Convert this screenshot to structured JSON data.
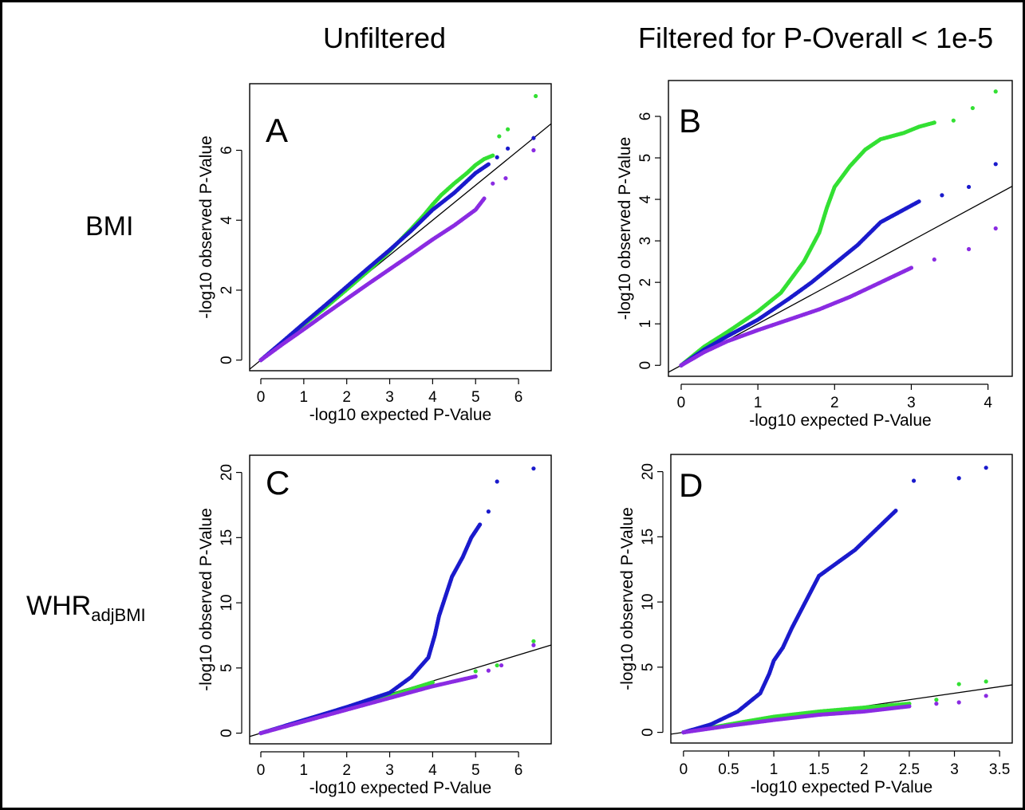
{
  "column_headers": [
    "Unfiltered",
    "Filtered for P-Overall < 1e-5"
  ],
  "row_labels": [
    {
      "text": "BMI",
      "sub": ""
    },
    {
      "text": "WHR",
      "sub": "adjBMI"
    }
  ],
  "colors": {
    "green": "#33e033",
    "blue": "#1a1acc",
    "purple": "#8a2be2",
    "line": "#000000"
  },
  "chart_data": [
    {
      "type": "scatter",
      "panel": "A",
      "xlabel": "-log10 expected P-Value",
      "ylabel": "-log10 observed P-Value",
      "xlim": [
        0,
        6.5
      ],
      "ylim": [
        0,
        7.6
      ],
      "xticks": [
        0,
        1,
        2,
        3,
        4,
        5,
        6
      ],
      "yticks": [
        0,
        2,
        4,
        6
      ],
      "reference_line": "y = x",
      "series": [
        {
          "color": "green",
          "points": [
            [
              0,
              0
            ],
            [
              0.5,
              0.5
            ],
            [
              1,
              1.02
            ],
            [
              1.5,
              1.5
            ],
            [
              2,
              2.02
            ],
            [
              2.5,
              2.55
            ],
            [
              3,
              3.12
            ],
            [
              3.5,
              3.75
            ],
            [
              3.8,
              4.15
            ],
            [
              4,
              4.45
            ],
            [
              4.2,
              4.72
            ],
            [
              4.5,
              5.05
            ],
            [
              4.8,
              5.35
            ],
            [
              5,
              5.58
            ],
            [
              5.2,
              5.75
            ],
            [
              5.4,
              5.85
            ],
            [
              5.55,
              6.4
            ],
            [
              5.75,
              6.6
            ],
            [
              6.4,
              7.55
            ]
          ]
        },
        {
          "color": "blue",
          "points": [
            [
              0,
              0
            ],
            [
              0.5,
              0.52
            ],
            [
              1,
              1.05
            ],
            [
              1.5,
              1.57
            ],
            [
              2,
              2.1
            ],
            [
              2.5,
              2.63
            ],
            [
              3,
              3.15
            ],
            [
              3.5,
              3.7
            ],
            [
              4,
              4.3
            ],
            [
              4.5,
              4.78
            ],
            [
              5,
              5.35
            ],
            [
              5.3,
              5.6
            ],
            [
              5.5,
              5.8
            ],
            [
              5.75,
              6.05
            ],
            [
              6.35,
              6.35
            ]
          ]
        },
        {
          "color": "purple",
          "points": [
            [
              0,
              0
            ],
            [
              0.5,
              0.45
            ],
            [
              1,
              0.88
            ],
            [
              1.5,
              1.32
            ],
            [
              2,
              1.75
            ],
            [
              2.5,
              2.18
            ],
            [
              3,
              2.6
            ],
            [
              3.5,
              3.02
            ],
            [
              4,
              3.45
            ],
            [
              4.5,
              3.85
            ],
            [
              5,
              4.3
            ],
            [
              5.2,
              4.62
            ],
            [
              5.4,
              5.05
            ],
            [
              5.7,
              5.2
            ],
            [
              6.35,
              6.0
            ]
          ]
        }
      ]
    },
    {
      "type": "scatter",
      "panel": "B",
      "xlabel": "-log10 expected P-Value",
      "ylabel": "-log10 observed P-Value",
      "xlim": [
        0,
        4.15
      ],
      "ylim": [
        0,
        6.6
      ],
      "xticks": [
        0,
        1,
        2,
        3,
        4
      ],
      "yticks": [
        0,
        1,
        2,
        3,
        4,
        5,
        6
      ],
      "reference_line": "y = x",
      "series": [
        {
          "color": "green",
          "points": [
            [
              0,
              0
            ],
            [
              0.3,
              0.45
            ],
            [
              0.6,
              0.8
            ],
            [
              1,
              1.3
            ],
            [
              1.3,
              1.75
            ],
            [
              1.6,
              2.5
            ],
            [
              1.8,
              3.2
            ],
            [
              1.9,
              3.8
            ],
            [
              2,
              4.3
            ],
            [
              2.2,
              4.8
            ],
            [
              2.4,
              5.2
            ],
            [
              2.6,
              5.45
            ],
            [
              2.9,
              5.6
            ],
            [
              3.1,
              5.75
            ],
            [
              3.3,
              5.85
            ],
            [
              3.55,
              5.9
            ],
            [
              3.8,
              6.2
            ],
            [
              4.1,
              6.6
            ]
          ]
        },
        {
          "color": "blue",
          "points": [
            [
              0,
              0
            ],
            [
              0.3,
              0.38
            ],
            [
              0.6,
              0.7
            ],
            [
              1,
              1.1
            ],
            [
              1.4,
              1.6
            ],
            [
              1.7,
              2.0
            ],
            [
              2,
              2.45
            ],
            [
              2.3,
              2.9
            ],
            [
              2.6,
              3.45
            ],
            [
              2.9,
              3.75
            ],
            [
              3.1,
              3.95
            ],
            [
              3.4,
              4.1
            ],
            [
              3.75,
              4.3
            ],
            [
              4.1,
              4.85
            ]
          ]
        },
        {
          "color": "purple",
          "points": [
            [
              0,
              0
            ],
            [
              0.3,
              0.32
            ],
            [
              0.6,
              0.58
            ],
            [
              1,
              0.85
            ],
            [
              1.4,
              1.1
            ],
            [
              1.8,
              1.35
            ],
            [
              2.2,
              1.65
            ],
            [
              2.6,
              2.0
            ],
            [
              3.0,
              2.35
            ],
            [
              3.3,
              2.55
            ],
            [
              3.75,
              2.8
            ],
            [
              4.1,
              3.3
            ]
          ]
        }
      ]
    },
    {
      "type": "scatter",
      "panel": "C",
      "xlabel": "-log10 expected P-Value",
      "ylabel": "-log10 observed P-Value",
      "xlim": [
        0,
        6.5
      ],
      "ylim": [
        0,
        20.5
      ],
      "xticks": [
        0,
        1,
        2,
        3,
        4,
        5,
        6
      ],
      "yticks": [
        0,
        5,
        10,
        15,
        20
      ],
      "reference_line": "y = x",
      "series": [
        {
          "color": "green",
          "points": [
            [
              0,
              0
            ],
            [
              1,
              0.95
            ],
            [
              2,
              1.9
            ],
            [
              3,
              2.85
            ],
            [
              4,
              3.9
            ],
            [
              5,
              4.75
            ],
            [
              5.5,
              5.2
            ],
            [
              6.35,
              7.05
            ]
          ]
        },
        {
          "color": "blue",
          "points": [
            [
              0,
              0
            ],
            [
              1,
              1.0
            ],
            [
              2,
              2.0
            ],
            [
              3,
              3.1
            ],
            [
              3.5,
              4.3
            ],
            [
              3.9,
              5.8
            ],
            [
              4.05,
              7.5
            ],
            [
              4.15,
              9.0
            ],
            [
              4.3,
              10.5
            ],
            [
              4.45,
              12.0
            ],
            [
              4.7,
              13.5
            ],
            [
              4.9,
              15.0
            ],
            [
              5.1,
              16.0
            ],
            [
              5.3,
              17.0
            ],
            [
              5.5,
              19.3
            ],
            [
              6.35,
              20.3
            ]
          ]
        },
        {
          "color": "purple",
          "points": [
            [
              0,
              0
            ],
            [
              1,
              0.9
            ],
            [
              2,
              1.8
            ],
            [
              3,
              2.7
            ],
            [
              4,
              3.6
            ],
            [
              5,
              4.35
            ],
            [
              5.3,
              4.8
            ],
            [
              5.6,
              5.2
            ],
            [
              6.35,
              6.75
            ]
          ]
        }
      ]
    },
    {
      "type": "scatter",
      "panel": "D",
      "xlabel": "-log10 expected P-Value",
      "ylabel": "-log10 observed P-Value",
      "xlim": [
        0,
        3.5
      ],
      "ylim": [
        0,
        20.5
      ],
      "xticks": [
        0,
        0.5,
        1,
        1.5,
        2,
        2.5,
        3,
        3.5
      ],
      "xtick_labels": [
        "0",
        "0.5",
        "1",
        "1.5",
        "2",
        "2.5",
        "3",
        "3.5"
      ],
      "yticks": [
        0,
        5,
        10,
        15,
        20
      ],
      "reference_line": "y = x",
      "series": [
        {
          "color": "green",
          "points": [
            [
              0,
              0
            ],
            [
              0.5,
              0.6
            ],
            [
              1,
              1.2
            ],
            [
              1.5,
              1.6
            ],
            [
              2,
              1.9
            ],
            [
              2.5,
              2.2
            ],
            [
              2.8,
              2.5
            ],
            [
              3.05,
              3.7
            ],
            [
              3.35,
              3.9
            ]
          ]
        },
        {
          "color": "blue",
          "points": [
            [
              0,
              0
            ],
            [
              0.3,
              0.6
            ],
            [
              0.6,
              1.6
            ],
            [
              0.85,
              3.0
            ],
            [
              0.95,
              4.5
            ],
            [
              1.0,
              5.5
            ],
            [
              1.1,
              6.5
            ],
            [
              1.2,
              8.0
            ],
            [
              1.35,
              10.0
            ],
            [
              1.5,
              12.0
            ],
            [
              1.7,
              13.0
            ],
            [
              1.9,
              14.0
            ],
            [
              2.2,
              16.0
            ],
            [
              2.35,
              17.0
            ],
            [
              2.55,
              19.3
            ],
            [
              3.05,
              19.5
            ],
            [
              3.35,
              20.3
            ]
          ]
        },
        {
          "color": "purple",
          "points": [
            [
              0,
              0
            ],
            [
              0.5,
              0.5
            ],
            [
              1,
              0.95
            ],
            [
              1.5,
              1.35
            ],
            [
              2,
              1.6
            ],
            [
              2.5,
              2.0
            ],
            [
              2.8,
              2.2
            ],
            [
              3.05,
              2.3
            ],
            [
              3.35,
              2.8
            ]
          ]
        }
      ]
    }
  ]
}
